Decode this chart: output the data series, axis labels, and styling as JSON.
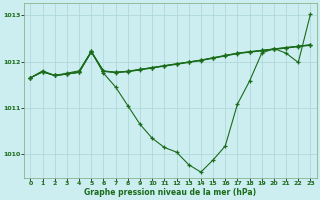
{
  "x": [
    0,
    1,
    2,
    3,
    4,
    5,
    6,
    7,
    8,
    9,
    10,
    11,
    12,
    13,
    14,
    15,
    16,
    17,
    18,
    19,
    20,
    21,
    22,
    23
  ],
  "line_dip": [
    1011.65,
    1011.8,
    1011.7,
    1011.75,
    1011.8,
    1012.22,
    1011.75,
    1011.45,
    1011.05,
    1010.65,
    1010.35,
    1010.15,
    1010.05,
    1009.78,
    1009.62,
    1009.88,
    1010.18,
    1011.08,
    1011.58,
    1012.18,
    1012.28,
    1012.18,
    1011.98,
    1013.02
  ],
  "line_flat1": [
    1011.65,
    1011.78,
    1011.7,
    1011.73,
    1011.77,
    1012.22,
    1011.8,
    1011.77,
    1011.79,
    1011.83,
    1011.87,
    1011.91,
    1011.95,
    1011.99,
    1012.03,
    1012.08,
    1012.13,
    1012.18,
    1012.21,
    1012.24,
    1012.27,
    1012.3,
    1012.33,
    1012.36
  ],
  "line_flat2": [
    1011.65,
    1011.78,
    1011.7,
    1011.73,
    1011.77,
    1012.2,
    1011.79,
    1011.76,
    1011.78,
    1011.82,
    1011.86,
    1011.9,
    1011.94,
    1011.98,
    1012.02,
    1012.07,
    1012.12,
    1012.17,
    1012.2,
    1012.23,
    1012.26,
    1012.29,
    1012.32,
    1012.35
  ],
  "line_flat3": [
    1011.65,
    1011.78,
    1011.7,
    1011.73,
    1011.77,
    1012.21,
    1011.79,
    1011.77,
    1011.79,
    1011.83,
    1011.87,
    1011.91,
    1011.95,
    1011.99,
    1012.03,
    1012.08,
    1012.13,
    1012.18,
    1012.21,
    1012.24,
    1012.27,
    1012.3,
    1012.33,
    1012.36
  ],
  "line_color": "#1a6b1a",
  "bg_color": "#cceef0",
  "grid_color": "#aad4d6",
  "xlabel": "Graphe pression niveau de la mer (hPa)",
  "ylim": [
    1009.5,
    1013.25
  ],
  "yticks": [
    1010,
    1011,
    1012,
    1013
  ],
  "xticks": [
    0,
    1,
    2,
    3,
    4,
    5,
    6,
    7,
    8,
    9,
    10,
    11,
    12,
    13,
    14,
    15,
    16,
    17,
    18,
    19,
    20,
    21,
    22,
    23
  ]
}
